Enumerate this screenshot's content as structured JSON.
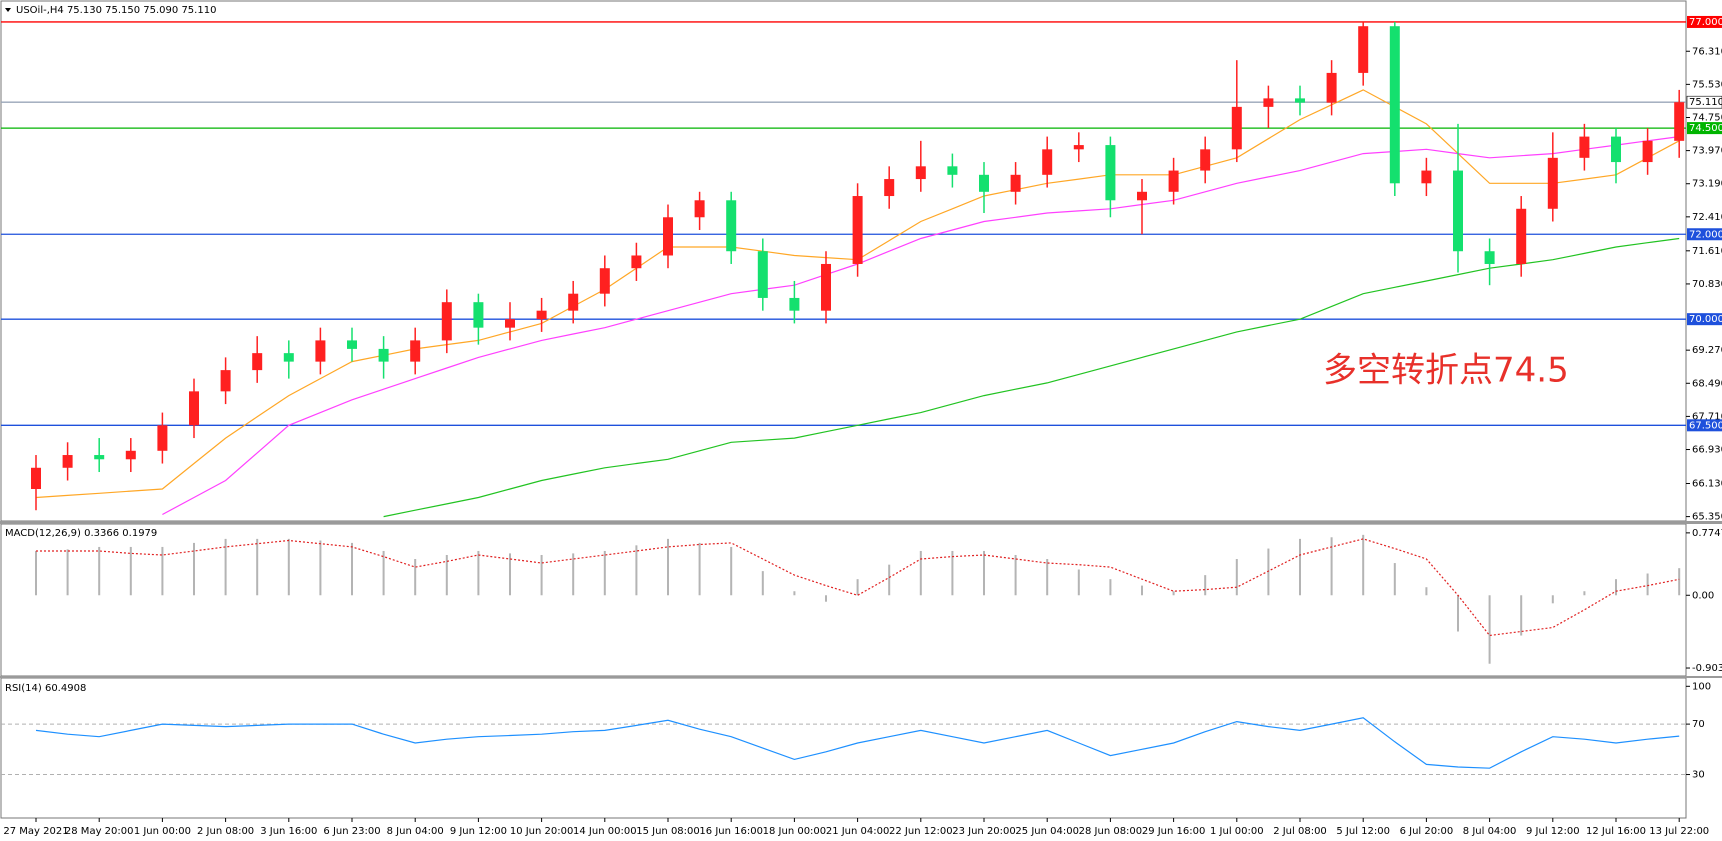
{
  "chart_data": [
    {
      "type": "candlestick",
      "title": "USOil-,H4  75.130 75.150 75.090 75.110",
      "annotation": "多空转折点74.5",
      "categories": [
        "27 May 2021",
        null,
        "28 May 20:00",
        null,
        "1 Jun 00:00",
        null,
        "2 Jun 08:00",
        null,
        "3 Jun 16:00",
        null,
        "6 Jun 23:00",
        null,
        "8 Jun 04:00",
        null,
        "9 Jun 12:00",
        null,
        "10 Jun 20:00",
        null,
        "14 Jun 00:00",
        null,
        "15 Jun 08:00",
        null,
        "16 Jun 16:00",
        null,
        "18 Jun 00:00",
        null,
        "21 Jun 04:00",
        null,
        "22 Jun 12:00",
        null,
        "23 Jun 20:00",
        null,
        "25 Jun 04:00",
        null,
        "28 Jun 08:00",
        null,
        "29 Jun 16:00",
        null,
        "1 Jul 00:00",
        null,
        "2 Jul 08:00",
        null,
        "5 Jul 12:00",
        null,
        "6 Jul 20:00",
        null,
        "8 Jul 04:00",
        null,
        "9 Jul 12:00",
        null,
        "12 Jul 16:00",
        null,
        "13 Jul 22:00"
      ],
      "open": [
        66.0,
        66.5,
        66.8,
        66.7,
        66.9,
        67.5,
        68.3,
        68.8,
        69.2,
        69.0,
        69.5,
        69.3,
        69.0,
        69.5,
        70.4,
        69.8,
        70.0,
        70.2,
        70.6,
        71.2,
        71.5,
        72.4,
        72.8,
        71.6,
        70.5,
        70.2,
        71.3,
        72.9,
        73.3,
        73.6,
        73.4,
        73.0,
        73.4,
        74.0,
        74.1,
        72.8,
        73.0,
        73.5,
        74.0,
        75.0,
        75.2,
        75.1,
        75.8,
        76.9,
        73.2,
        73.5,
        71.6,
        71.3,
        72.6,
        73.8,
        74.3,
        73.7,
        74.2
      ],
      "high": [
        66.8,
        67.1,
        67.2,
        67.2,
        67.8,
        68.6,
        69.1,
        69.6,
        69.5,
        69.8,
        69.8,
        69.6,
        69.8,
        70.7,
        70.6,
        70.4,
        70.5,
        70.9,
        71.5,
        71.8,
        72.7,
        73.0,
        73.0,
        71.9,
        70.9,
        71.6,
        73.2,
        73.6,
        74.2,
        73.9,
        73.7,
        73.7,
        74.3,
        74.4,
        74.3,
        73.3,
        73.8,
        74.3,
        76.1,
        75.5,
        75.5,
        76.1,
        77.0,
        77.0,
        73.8,
        74.6,
        71.9,
        72.9,
        74.4,
        74.6,
        74.5,
        74.5,
        75.4
      ],
      "low": [
        65.5,
        66.2,
        66.4,
        66.4,
        66.6,
        67.2,
        68.0,
        68.5,
        68.6,
        68.7,
        69.0,
        68.6,
        68.7,
        69.2,
        69.4,
        69.5,
        69.7,
        69.9,
        70.3,
        70.9,
        71.2,
        72.1,
        71.3,
        70.2,
        69.9,
        69.9,
        71.0,
        72.6,
        73.0,
        73.1,
        72.5,
        72.7,
        73.1,
        73.7,
        72.4,
        72.0,
        72.7,
        73.2,
        73.7,
        74.5,
        74.8,
        74.8,
        75.5,
        72.9,
        72.9,
        71.1,
        70.8,
        71.0,
        72.3,
        73.5,
        73.2,
        73.4,
        73.8
      ],
      "close": [
        66.5,
        66.8,
        66.7,
        66.9,
        67.5,
        68.3,
        68.8,
        69.2,
        69.0,
        69.5,
        69.3,
        69.0,
        69.5,
        70.4,
        69.8,
        70.0,
        70.2,
        70.6,
        71.2,
        71.5,
        72.4,
        72.8,
        71.6,
        70.5,
        70.2,
        71.3,
        72.9,
        73.3,
        73.6,
        73.4,
        73.0,
        73.4,
        74.0,
        74.1,
        72.8,
        73.0,
        73.5,
        74.0,
        75.0,
        75.2,
        75.1,
        75.8,
        76.9,
        73.2,
        73.5,
        71.6,
        71.3,
        72.6,
        73.8,
        74.3,
        73.7,
        74.2,
        75.11
      ],
      "up_color": "#ff2020",
      "down_color": "#14e06e",
      "series": [
        {
          "color": "#ffa726",
          "values": [
            65.8,
            65.85,
            65.9,
            65.95,
            66.0,
            66.6,
            67.2,
            67.7,
            68.2,
            68.6,
            69.0,
            69.15,
            69.3,
            69.4,
            69.5,
            69.7,
            69.9,
            70.3,
            70.7,
            71.2,
            71.7,
            71.7,
            71.7,
            71.6,
            71.5,
            71.45,
            71.4,
            71.85,
            72.3,
            72.6,
            72.9,
            73.05,
            73.2,
            73.3,
            73.4,
            73.4,
            73.4,
            73.6,
            73.8,
            74.25,
            74.7,
            75.05,
            75.4,
            75.0,
            74.6,
            73.9,
            73.2,
            73.2,
            73.2,
            73.3,
            73.4,
            73.8,
            74.2
          ]
        },
        {
          "color": "#ff40ff",
          "values": [
            null,
            null,
            null,
            null,
            65.4,
            65.8,
            66.2,
            66.85,
            67.5,
            67.8,
            68.1,
            68.35,
            68.6,
            68.85,
            69.1,
            69.3,
            69.5,
            69.65,
            69.8,
            70.0,
            70.2,
            70.4,
            70.6,
            70.7,
            70.8,
            71.05,
            71.3,
            71.6,
            71.9,
            72.1,
            72.3,
            72.4,
            72.5,
            72.55,
            72.6,
            72.7,
            72.8,
            73.0,
            73.2,
            73.35,
            73.5,
            73.7,
            73.9,
            73.95,
            74.0,
            73.9,
            73.8,
            73.85,
            73.9,
            74.0,
            74.1,
            74.2,
            74.3
          ]
        },
        {
          "color": "#22c322",
          "values": [
            null,
            null,
            null,
            null,
            null,
            null,
            null,
            null,
            null,
            null,
            null,
            65.35,
            65.5,
            65.65,
            65.8,
            66.0,
            66.2,
            66.35,
            66.5,
            66.6,
            66.7,
            66.9,
            67.1,
            67.15,
            67.2,
            67.35,
            67.5,
            67.65,
            67.8,
            68.0,
            68.2,
            68.35,
            68.5,
            68.7,
            68.9,
            69.1,
            69.3,
            69.5,
            69.7,
            69.85,
            70.0,
            70.3,
            70.6,
            70.75,
            70.9,
            71.05,
            71.2,
            71.3,
            71.4,
            71.55,
            71.7,
            71.8,
            71.9
          ]
        }
      ],
      "hlines": [
        {
          "value": 77.0,
          "label": "77.000",
          "color": "#ff0000"
        },
        {
          "value": 75.11,
          "label": "75.110",
          "color": "#9aa6b8"
        },
        {
          "value": 74.5,
          "label": "74.500",
          "color": "#00b400"
        },
        {
          "value": 72.0,
          "label": "72.000",
          "color": "#1e50dc"
        },
        {
          "value": 70.0,
          "label": "70.000",
          "color": "#1e50dc"
        },
        {
          "value": 67.5,
          "label": "67.500",
          "color": "#1e50dc"
        }
      ],
      "ylim": [
        65.27,
        77.47
      ],
      "yticks": [
        {
          "value": 76.31,
          "label": "76.310"
        },
        {
          "value": 75.53,
          "label": "75.530"
        },
        {
          "value": 74.75,
          "label": "74.750"
        },
        {
          "value": 73.97,
          "label": "73.970"
        },
        {
          "value": 73.19,
          "label": "73.190"
        },
        {
          "value": 72.41,
          "label": "72.410"
        },
        {
          "value": 71.61,
          "label": "71.610"
        },
        {
          "value": 70.83,
          "label": "70.830"
        },
        {
          "value": 69.27,
          "label": "69.270"
        },
        {
          "value": 68.49,
          "label": "68.490"
        },
        {
          "value": 67.71,
          "label": "67.710"
        },
        {
          "value": 66.93,
          "label": "66.930"
        },
        {
          "value": 66.13,
          "label": "66.130"
        },
        {
          "value": 65.35,
          "label": "65.350"
        }
      ]
    },
    {
      "type": "bar",
      "title": "MACD(12,26,9) 0.3366 0.1979",
      "color": "#b4b4b4",
      "values": [
        0.55,
        0.57,
        0.6,
        0.6,
        0.6,
        0.65,
        0.7,
        0.7,
        0.7,
        0.68,
        0.65,
        0.55,
        0.45,
        0.5,
        0.55,
        0.52,
        0.5,
        0.52,
        0.55,
        0.62,
        0.7,
        0.65,
        0.6,
        0.3,
        0.05,
        -0.08,
        0.2,
        0.38,
        0.55,
        0.55,
        0.55,
        0.5,
        0.45,
        0.32,
        0.2,
        0.12,
        0.05,
        0.25,
        0.45,
        0.58,
        0.7,
        0.72,
        0.75,
        0.4,
        0.1,
        -0.45,
        -0.85,
        -0.5,
        -0.1,
        0.05,
        0.2,
        0.27,
        0.3366
      ],
      "series": [
        {
          "color": "#e02020",
          "dash": "2 2",
          "values": [
            0.55,
            0.55,
            0.55,
            0.52,
            0.5,
            0.55,
            0.6,
            0.64,
            0.68,
            0.64,
            0.6,
            0.48,
            0.35,
            0.42,
            0.5,
            0.45,
            0.4,
            0.45,
            0.5,
            0.55,
            0.6,
            0.63,
            0.65,
            0.45,
            0.25,
            0.12,
            0.0,
            0.22,
            0.45,
            0.48,
            0.5,
            0.45,
            0.4,
            0.38,
            0.35,
            0.2,
            0.05,
            0.07,
            0.1,
            0.3,
            0.5,
            0.6,
            0.7,
            0.58,
            0.45,
            0.0,
            -0.5,
            -0.45,
            -0.4,
            -0.18,
            0.05,
            0.12,
            0.1979
          ]
        }
      ],
      "ylim": [
        -0.99,
        0.86
      ],
      "yticks": [
        0.7747,
        {
          "value": 0,
          "label": "0.00"
        },
        -0.9034
      ]
    },
    {
      "type": "line",
      "title": "RSI(14) 60.4908",
      "series": [
        {
          "color": "#1e90ff",
          "values": [
            65,
            62,
            60,
            65,
            70,
            69,
            68,
            69,
            70,
            70,
            70,
            62,
            55,
            58,
            60,
            61,
            62,
            64,
            65,
            69,
            73,
            66,
            60,
            51,
            42,
            48,
            55,
            60,
            65,
            60,
            55,
            60,
            65,
            55,
            45,
            50,
            55,
            64,
            72,
            68,
            65,
            70,
            75,
            56,
            38,
            36,
            35,
            48,
            60,
            58,
            55,
            58,
            60.4908
          ]
        }
      ],
      "dashed_levels": [
        70,
        30
      ],
      "ylim": [
        -3.7,
        105
      ],
      "yticks": [
        100,
        70,
        30
      ]
    }
  ]
}
